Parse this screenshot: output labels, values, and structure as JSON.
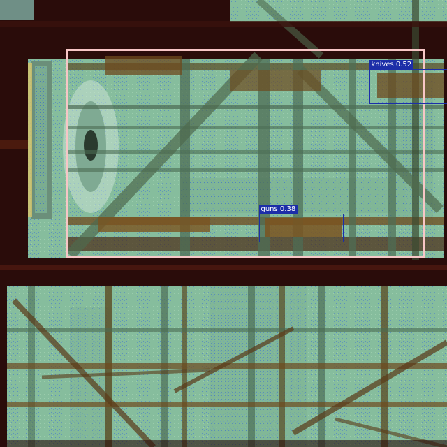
{
  "image": {
    "kind": "x-ray cargo scan with detections",
    "palette": {
      "background_dark": "#2a0c0a",
      "cargo_green": "#7fb89a",
      "noise_blue": "#3a6fd8",
      "metal_brown": "#6e4a1e",
      "roi_border": "#f7c6c6",
      "detection_border": "#1c2ea8"
    }
  },
  "detections": [
    {
      "label": "knives 0.52",
      "class": "knives",
      "score": 0.52
    },
    {
      "label": "guns 0.38",
      "class": "guns",
      "score": 0.38
    }
  ]
}
